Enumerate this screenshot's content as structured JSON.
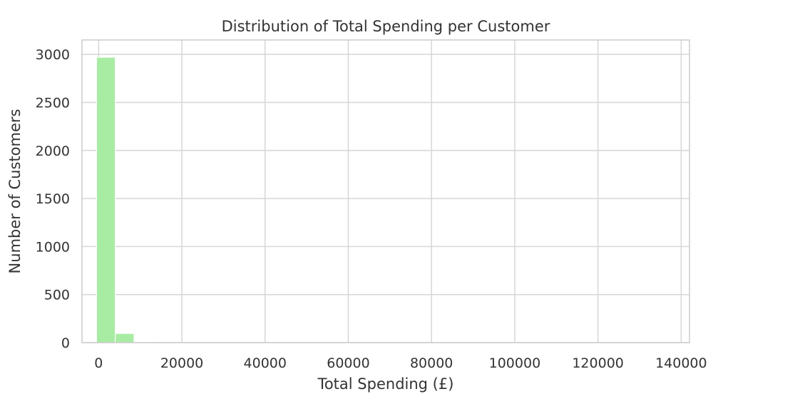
{
  "chart_data": {
    "type": "bar",
    "title": "Distribution of Total Spending per Customer",
    "xlabel": "Total Spending (£)",
    "ylabel": "Number of Customers",
    "xlim": [
      -4000,
      142000
    ],
    "ylim": [
      0,
      3150
    ],
    "xticks": [
      0,
      20000,
      40000,
      60000,
      80000,
      100000,
      120000,
      140000
    ],
    "yticks": [
      0,
      500,
      1000,
      1500,
      2000,
      2500,
      3000
    ],
    "grid": true,
    "bar_color": "#a8eca4",
    "bin_width": 4500,
    "bins": [
      {
        "x0": -500,
        "x1": 4000,
        "count": 2970
      },
      {
        "x0": 4000,
        "x1": 8500,
        "count": 95
      },
      {
        "x0": 8500,
        "x1": 13000,
        "count": 6
      },
      {
        "x0": 13000,
        "x1": 17500,
        "count": 2
      },
      {
        "x0": 17500,
        "x1": 22000,
        "count": 1
      },
      {
        "x0": 22000,
        "x1": 26500,
        "count": 1
      },
      {
        "x0": 26500,
        "x1": 31000,
        "count": 0
      },
      {
        "x0": 31000,
        "x1": 35500,
        "count": 1
      },
      {
        "x0": 35500,
        "x1": 40000,
        "count": 0
      },
      {
        "x0": 40000,
        "x1": 44500,
        "count": 0
      },
      {
        "x0": 44500,
        "x1": 49000,
        "count": 0
      },
      {
        "x0": 49000,
        "x1": 53500,
        "count": 0
      },
      {
        "x0": 53500,
        "x1": 58000,
        "count": 0
      },
      {
        "x0": 58000,
        "x1": 62500,
        "count": 0
      },
      {
        "x0": 62500,
        "x1": 67000,
        "count": 0
      },
      {
        "x0": 67000,
        "x1": 71500,
        "count": 0
      },
      {
        "x0": 71500,
        "x1": 76000,
        "count": 0
      },
      {
        "x0": 76000,
        "x1": 80500,
        "count": 0
      },
      {
        "x0": 80500,
        "x1": 85000,
        "count": 0
      },
      {
        "x0": 85000,
        "x1": 89500,
        "count": 0
      },
      {
        "x0": 89500,
        "x1": 94000,
        "count": 0
      },
      {
        "x0": 94000,
        "x1": 98500,
        "count": 0
      },
      {
        "x0": 98500,
        "x1": 103000,
        "count": 0
      },
      {
        "x0": 103000,
        "x1": 107500,
        "count": 0
      },
      {
        "x0": 107500,
        "x1": 112000,
        "count": 0
      },
      {
        "x0": 112000,
        "x1": 116500,
        "count": 0
      },
      {
        "x0": 116500,
        "x1": 121000,
        "count": 0
      },
      {
        "x0": 121000,
        "x1": 125500,
        "count": 0
      },
      {
        "x0": 125500,
        "x1": 130000,
        "count": 0
      },
      {
        "x0": 130000,
        "x1": 134500,
        "count": 0
      }
    ]
  }
}
